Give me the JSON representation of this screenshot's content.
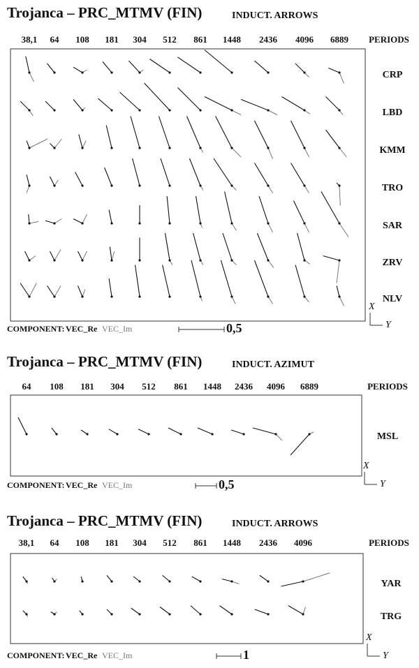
{
  "chart_data": [
    {
      "type": "induction-arrows",
      "title": "Trojanca – PRC_MTMV (FIN)",
      "subtitle": "INDUCT. ARROWS",
      "periods": [
        "38,1",
        "64",
        "108",
        "181",
        "304",
        "512",
        "861",
        "1448",
        "2436",
        "4096",
        "6889"
      ],
      "periods_label": "PERIODS",
      "stations": [
        {
          "name": "CRP",
          "re": [
            [
              0.18,
              -0.04
            ],
            [
              0.1,
              -0.08
            ],
            [
              0.06,
              -0.1
            ],
            [
              0.12,
              -0.1
            ],
            [
              0.13,
              -0.12
            ],
            [
              0.15,
              -0.22
            ],
            [
              0.17,
              -0.25
            ],
            [
              0.25,
              -0.3
            ],
            [
              0.13,
              -0.15
            ],
            [
              0.1,
              -0.1
            ],
            [
              0.05,
              -0.12
            ]
          ],
          "im": [
            [
              -0.1,
              0.05
            ],
            [
              0,
              0
            ],
            [
              0.03,
              0.05
            ],
            [
              0,
              0
            ],
            [
              0.03,
              0.04
            ],
            [
              0,
              0
            ],
            [
              0,
              0
            ],
            [
              0,
              0
            ],
            [
              0,
              0
            ],
            [
              -0.05,
              0.05
            ],
            [
              -0.12,
              0.05
            ]
          ]
        },
        {
          "name": "LBD",
          "re": [
            [
              0.1,
              -0.1
            ],
            [
              0.1,
              -0.1
            ],
            [
              0.12,
              -0.1
            ],
            [
              0.13,
              -0.15
            ],
            [
              0.2,
              -0.22
            ],
            [
              0.3,
              -0.28
            ],
            [
              0.25,
              -0.25
            ],
            [
              0.15,
              -0.3
            ],
            [
              0.12,
              -0.3
            ],
            [
              0.15,
              -0.25
            ],
            [
              0.15,
              -0.15
            ]
          ],
          "im": [
            [
              -0.06,
              0.04
            ],
            [
              0,
              0
            ],
            [
              0.03,
              0.03
            ],
            [
              0,
              0
            ],
            [
              0,
              0
            ],
            [
              0,
              0
            ],
            [
              0,
              0
            ],
            [
              -0.05,
              0.1
            ],
            [
              -0.05,
              0.1
            ],
            [
              -0.04,
              0.06
            ],
            [
              -0.05,
              0.04
            ]
          ]
        },
        {
          "name": "KMM",
          "re": [
            [
              0.08,
              -0.03
            ],
            [
              0.05,
              -0.05
            ],
            [
              0.15,
              -0.04
            ],
            [
              0.25,
              -0.06
            ],
            [
              0.35,
              -0.1
            ],
            [
              0.35,
              -0.12
            ],
            [
              0.35,
              -0.15
            ],
            [
              0.35,
              -0.18
            ],
            [
              0.3,
              -0.15
            ],
            [
              0.3,
              -0.15
            ],
            [
              0.2,
              -0.15
            ]
          ],
          "im": [
            [
              0.1,
              0.2
            ],
            [
              0.1,
              0.08
            ],
            [
              0.08,
              0.04
            ],
            [
              0,
              0
            ],
            [
              0,
              0
            ],
            [
              0,
              0
            ],
            [
              -0.05,
              0.03
            ],
            [
              -0.1,
              0.1
            ],
            [
              -0.12,
              0.05
            ],
            [
              -0.1,
              0.05
            ],
            [
              -0.1,
              0.08
            ]
          ]
        },
        {
          "name": "TRO",
          "re": [
            [
              0.12,
              -0.03
            ],
            [
              0.1,
              -0.05
            ],
            [
              0.15,
              -0.08
            ],
            [
              0.2,
              -0.08
            ],
            [
              0.3,
              -0.08
            ],
            [
              0.3,
              -0.1
            ],
            [
              0.3,
              -0.12
            ],
            [
              0.3,
              -0.2
            ],
            [
              0.25,
              -0.15
            ],
            [
              0.25,
              -0.15
            ],
            [
              0.03,
              -0.03
            ]
          ],
          "im": [
            [
              -0.08,
              -0.03
            ],
            [
              0.06,
              0.04
            ],
            [
              0,
              0
            ],
            [
              0,
              0
            ],
            [
              0,
              0
            ],
            [
              0,
              0
            ],
            [
              -0.05,
              0.03
            ],
            [
              -0.05,
              0.05
            ],
            [
              -0.08,
              0.05
            ],
            [
              -0.08,
              0.05
            ],
            [
              -0.22,
              0.01
            ]
          ]
        },
        {
          "name": "SAR",
          "re": [
            [
              0.1,
              -0.01
            ],
            [
              0.03,
              -0.1
            ],
            [
              0.05,
              -0.1
            ],
            [
              0.15,
              -0.03
            ],
            [
              0.2,
              0
            ],
            [
              0.3,
              -0.03
            ],
            [
              0.3,
              -0.05
            ],
            [
              0.35,
              -0.08
            ],
            [
              0.3,
              -0.1
            ],
            [
              0.25,
              -0.12
            ],
            [
              0.35,
              -0.2
            ]
          ],
          "im": [
            [
              0.02,
              0.1
            ],
            [
              0.05,
              0.08
            ],
            [
              0.1,
              0.05
            ],
            [
              0,
              0
            ],
            [
              0,
              0
            ],
            [
              0,
              0
            ],
            [
              -0.05,
              0.02
            ],
            [
              -0.08,
              0.05
            ],
            [
              -0.1,
              0.05
            ],
            [
              -0.1,
              0.05
            ],
            [
              -0.15,
              0.1
            ]
          ]
        },
        {
          "name": "ZRV",
          "re": [
            [
              0.1,
              -0.05
            ],
            [
              0.1,
              -0.05
            ],
            [
              0.1,
              -0.05
            ],
            [
              0.15,
              -0.02
            ],
            [
              0.25,
              0
            ],
            [
              0.3,
              -0.05
            ],
            [
              0.3,
              -0.08
            ],
            [
              0.3,
              -0.1
            ],
            [
              0.3,
              -0.12
            ],
            [
              0.3,
              -0.08
            ],
            [
              0.05,
              -0.18
            ]
          ],
          "im": [
            [
              0.05,
              0.07
            ],
            [
              0.12,
              0.07
            ],
            [
              0.1,
              0.05
            ],
            [
              0.1,
              0.03
            ],
            [
              0,
              0
            ],
            [
              -0.05,
              0.03
            ],
            [
              -0.05,
              0.03
            ],
            [
              -0.05,
              0.05
            ],
            [
              -0.08,
              0.06
            ],
            [
              -0.04,
              0.06
            ],
            [
              -0.25,
              -0.03
            ]
          ]
        },
        {
          "name": "NLV",
          "re": [
            [
              0.15,
              -0.1
            ],
            [
              0.12,
              -0.08
            ],
            [
              0.12,
              -0.05
            ],
            [
              0.2,
              -0.03
            ],
            [
              0.35,
              -0.05
            ],
            [
              0.35,
              -0.08
            ],
            [
              0.4,
              -0.1
            ],
            [
              0.4,
              -0.12
            ],
            [
              0.4,
              -0.15
            ],
            [
              0.35,
              -0.1
            ],
            [
              0.12,
              -0.03
            ]
          ],
          "im": [
            [
              0.15,
              0.08
            ],
            [
              0.12,
              0.07
            ],
            [
              0.08,
              0.03
            ],
            [
              0,
              0
            ],
            [
              0,
              0
            ],
            [
              0,
              0
            ],
            [
              -0.05,
              0.02
            ],
            [
              -0.08,
              0.04
            ],
            [
              -0.08,
              0.05
            ],
            [
              -0.06,
              0.05
            ],
            [
              -0.1,
              0.05
            ]
          ]
        }
      ],
      "component_label": "COMPONENT:",
      "re_label": "VEC_Re",
      "im_label": "VEC_Im",
      "re_color": "#111111",
      "im_color": "#777777",
      "scale": {
        "value": 0.5,
        "label": "0,5"
      },
      "axis_labels": [
        "X",
        "Y"
      ]
    },
    {
      "type": "induction-arrows",
      "title": "Trojanca – PRC_MTMV (FIN)",
      "subtitle": "INDUCT. AZIMUT",
      "periods": [
        "64",
        "108",
        "181",
        "304",
        "512",
        "861",
        "1448",
        "2436",
        "4096",
        "6889"
      ],
      "periods_label": "PERIODS",
      "stations": [
        {
          "name": "MSL",
          "re": [
            [
              0.4,
              -0.2
            ],
            [
              0.15,
              -0.12
            ],
            [
              0.1,
              -0.15
            ],
            [
              0.12,
              -0.2
            ],
            [
              0.12,
              -0.25
            ],
            [
              0.15,
              -0.3
            ],
            [
              0.15,
              -0.35
            ],
            [
              0.1,
              -0.3
            ],
            [
              0.15,
              -0.55
            ],
            [
              -0.5,
              -0.45
            ]
          ],
          "im": [
            [
              0,
              0
            ],
            [
              0,
              0
            ],
            [
              0,
              0
            ],
            [
              0,
              0
            ],
            [
              0,
              0
            ],
            [
              0,
              0
            ],
            [
              0,
              0
            ],
            [
              0,
              0
            ],
            [
              -0.15,
              0.15
            ],
            [
              0.05,
              0.1
            ]
          ]
        }
      ],
      "component_label": "COMPONENT:",
      "re_label": "VEC_Re",
      "im_label": "VEC_Im",
      "re_color": "#111111",
      "im_color": "#777777",
      "scale": {
        "value": 0.5,
        "label": "0,5"
      },
      "axis_labels": [
        "X",
        "Y"
      ]
    },
    {
      "type": "induction-arrows",
      "title": "Trojanca – PRC_MTMV (FIN)",
      "subtitle": "INDUCT. ARROWS",
      "periods": [
        "38,1",
        "64",
        "108",
        "181",
        "304",
        "512",
        "861",
        "1448",
        "2436",
        "4096"
      ],
      "periods_label": "PERIODS",
      "stations": [
        {
          "name": "YAR",
          "re": [
            [
              0.2,
              -0.15
            ],
            [
              0.15,
              -0.1
            ],
            [
              0.2,
              -0.05
            ],
            [
              0.25,
              -0.2
            ],
            [
              0.2,
              -0.25
            ],
            [
              0.25,
              -0.3
            ],
            [
              0.2,
              -0.35
            ],
            [
              0.1,
              -0.4
            ],
            [
              0.25,
              -0.35
            ],
            [
              -0.2,
              -0.9
            ]
          ],
          "im": [
            [
              -0.1,
              0.05
            ],
            [
              0.1,
              0.1
            ],
            [
              0,
              0
            ],
            [
              0,
              0
            ],
            [
              0,
              0
            ],
            [
              0,
              0
            ],
            [
              0,
              0
            ],
            [
              -0.1,
              0.3
            ],
            [
              0,
              0
            ],
            [
              0.35,
              1.1
            ]
          ]
        },
        {
          "name": "TRG",
          "re": [
            [
              0.15,
              -0.15
            ],
            [
              0.1,
              -0.15
            ],
            [
              0.15,
              -0.12
            ],
            [
              0.2,
              -0.2
            ],
            [
              0.25,
              -0.35
            ],
            [
              0.3,
              -0.4
            ],
            [
              0.35,
              -0.4
            ],
            [
              0.35,
              -0.5
            ],
            [
              0.2,
              -0.55
            ],
            [
              0.35,
              -0.6
            ]
          ],
          "im": [
            [
              -0.1,
              0.05
            ],
            [
              0.1,
              0.1
            ],
            [
              0,
              0
            ],
            [
              0,
              0
            ],
            [
              0,
              0
            ],
            [
              0,
              0
            ],
            [
              0,
              0
            ],
            [
              0,
              0
            ],
            [
              0,
              0
            ],
            [
              0.3,
              0.1
            ]
          ]
        }
      ],
      "component_label": "COMPONENT:",
      "re_label": "VEC_Re",
      "im_label": "VEC_Im",
      "re_color": "#111111",
      "im_color": "#777777",
      "scale": 1,
      "axis_labels": [
        "X",
        "Y"
      ]
    }
  ]
}
